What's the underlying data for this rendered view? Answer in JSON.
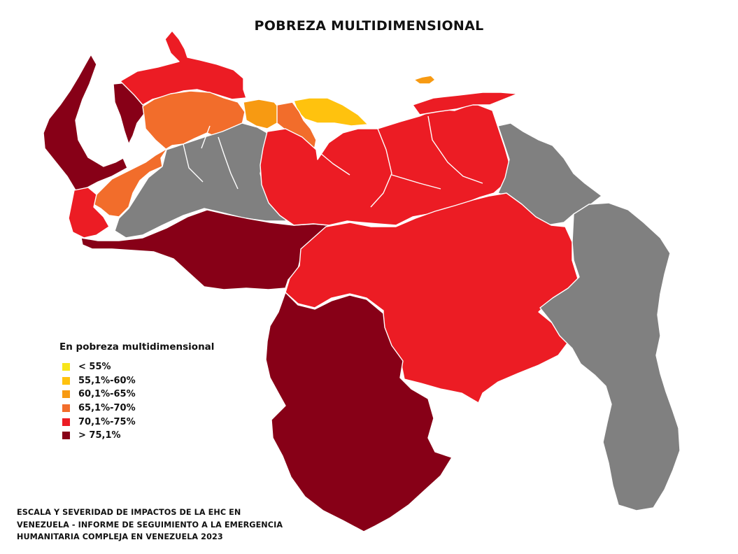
{
  "title": "POBREZA MULTIDIMENSIONAL",
  "colors": {
    "lt55": "#f7e51b",
    "c55_60": "#ffc20e",
    "c60_65": "#f79a12",
    "c65_70": "#f26d2b",
    "c70_75": "#ec1c24",
    "gt75": "#870017",
    "nodata": "#808080"
  },
  "legend": {
    "title": "En pobreza multidimensional",
    "items": [
      {
        "label": "< 55%",
        "color": "#f7e51b"
      },
      {
        "label": "55,1%-60%",
        "color": "#ffc20e"
      },
      {
        "label": "60,1%-65%",
        "color": "#f79a12"
      },
      {
        "label": "65,1%-70%",
        "color": "#f26d2b"
      },
      {
        "label": "70,1%-75%",
        "color": "#ec1c24"
      },
      {
        "label": "> 75,1%",
        "color": "#870017"
      }
    ]
  },
  "source": {
    "lines": [
      "ESCALA Y SEVERIDAD DE IMPACTOS DE LA EHC EN",
      "VENEZUELA - INFORME DE SEGUIMIENTO A LA EMERGENCIA",
      "HUMANITARIA COMPLEJA EN VENEZUELA 2023"
    ]
  }
}
